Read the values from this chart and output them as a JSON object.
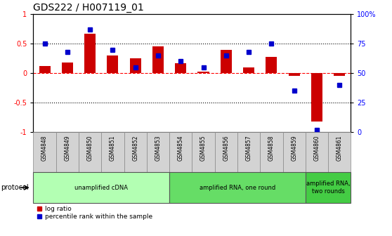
{
  "title": "GDS222 / H007119_01",
  "samples": [
    "GSM4848",
    "GSM4849",
    "GSM4850",
    "GSM4851",
    "GSM4852",
    "GSM4853",
    "GSM4854",
    "GSM4855",
    "GSM4856",
    "GSM4857",
    "GSM4858",
    "GSM4859",
    "GSM4860",
    "GSM4861"
  ],
  "log_ratio": [
    0.12,
    0.18,
    0.67,
    0.3,
    0.25,
    0.45,
    0.17,
    0.03,
    0.4,
    0.1,
    0.27,
    -0.05,
    -0.82,
    -0.05
  ],
  "percentile_rank": [
    75,
    68,
    87,
    70,
    55,
    65,
    60,
    55,
    65,
    68,
    75,
    35,
    2,
    40
  ],
  "ylim_left": [
    -1,
    1
  ],
  "ylim_right": [
    0,
    100
  ],
  "yticks_left": [
    -1,
    -0.5,
    0,
    0.5,
    1
  ],
  "ytick_labels_left": [
    "-1",
    "-0.5",
    "0",
    "0.5",
    "1"
  ],
  "yticks_right": [
    0,
    25,
    50,
    75,
    100
  ],
  "ytick_labels_right": [
    "0",
    "25",
    "50",
    "75",
    "100%"
  ],
  "bar_color": "#cc0000",
  "dot_color": "#0000cc",
  "protocol_groups": [
    {
      "label": "unamplified cDNA",
      "start": 0,
      "end": 6,
      "color": "#b3ffb3"
    },
    {
      "label": "amplified RNA, one round",
      "start": 6,
      "end": 12,
      "color": "#66dd66"
    },
    {
      "label": "amplified RNA,\ntwo rounds",
      "start": 12,
      "end": 14,
      "color": "#44cc44"
    }
  ],
  "legend_label_bar": "log ratio",
  "legend_label_dot": "percentile rank within the sample",
  "legend_color_bar": "#cc0000",
  "legend_color_dot": "#0000cc",
  "protocol_label": "protocol",
  "title_fontsize": 10,
  "tick_fontsize": 7,
  "label_fontsize": 7,
  "bar_width": 0.5,
  "sample_box_color": "#d3d3d3"
}
